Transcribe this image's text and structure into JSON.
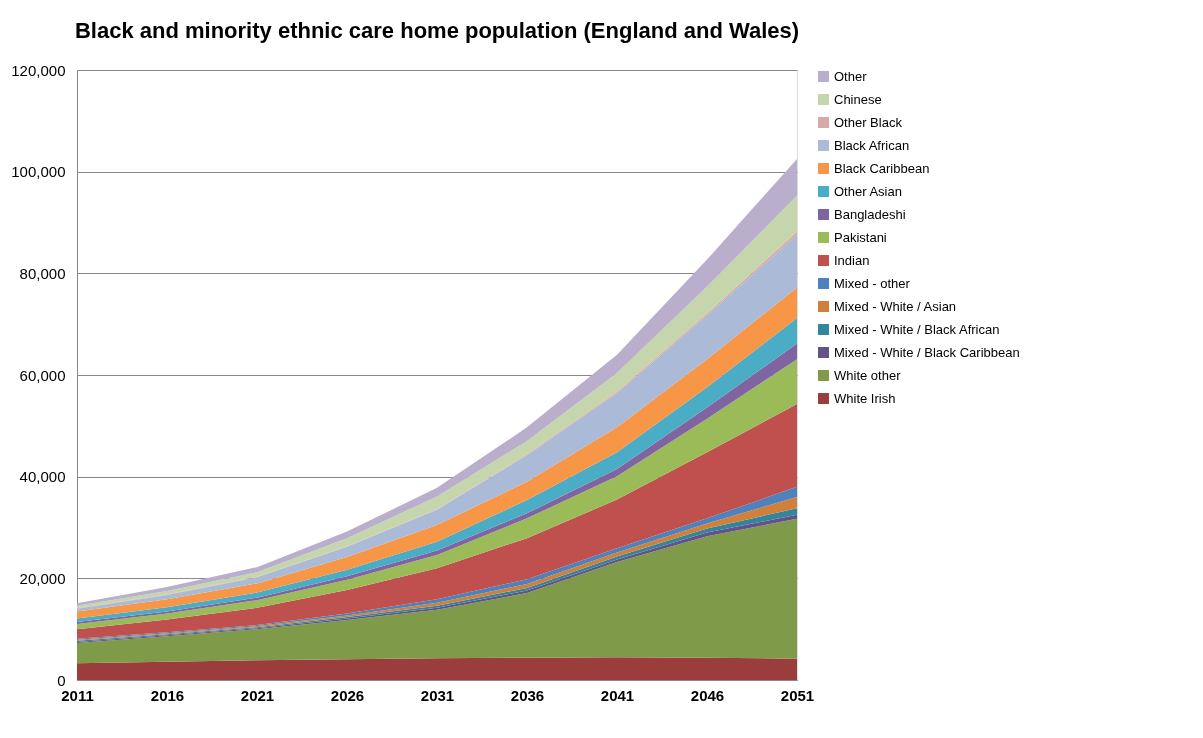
{
  "chart_data": {
    "type": "area",
    "stacked": true,
    "title": "Black and minority ethnic care home population (England and Wales)",
    "categories": [
      "2011",
      "2016",
      "2021",
      "2026",
      "2031",
      "2036",
      "2041",
      "2046",
      "2051"
    ],
    "ylim": [
      0,
      120000
    ],
    "yticks": [
      {
        "value": 0,
        "label": "0"
      },
      {
        "value": 20000,
        "label": "20,000"
      },
      {
        "value": 40000,
        "label": "40,000"
      },
      {
        "value": 60000,
        "label": "60,000"
      },
      {
        "value": 80000,
        "label": "80,000"
      },
      {
        "value": 100000,
        "label": "100,000"
      },
      {
        "value": 120000,
        "label": "120,000"
      }
    ],
    "grid": "y",
    "legend": "right",
    "series": [
      {
        "name": "White Irish",
        "color": "#9b3d3d",
        "values": [
          3300,
          3600,
          3900,
          4100,
          4300,
          4400,
          4500,
          4400,
          4200
        ]
      },
      {
        "name": "White other",
        "color": "#7f9a48",
        "values": [
          4000,
          5000,
          6100,
          7700,
          9500,
          12700,
          18700,
          23900,
          27500
        ]
      },
      {
        "name": "Mixed - White / Black Caribbean",
        "color": "#65518a",
        "values": [
          200,
          200,
          200,
          300,
          400,
          500,
          500,
          700,
          800
        ]
      },
      {
        "name": "Mixed - White / Black African",
        "color": "#31859c",
        "values": [
          200,
          200,
          200,
          300,
          400,
          500,
          600,
          800,
          1300
        ]
      },
      {
        "name": "Mixed - White / Asian",
        "color": "#d0803a",
        "values": [
          200,
          200,
          200,
          300,
          600,
          800,
          800,
          1000,
          2200
        ]
      },
      {
        "name": "Mixed - other",
        "color": "#4f81bd",
        "values": [
          200,
          200,
          200,
          400,
          700,
          900,
          800,
          1000,
          2000
        ]
      },
      {
        "name": "Indian",
        "color": "#c0504d",
        "values": [
          1900,
          2500,
          3400,
          4600,
          6100,
          8100,
          9600,
          13000,
          16300
        ]
      },
      {
        "name": "Pakistani",
        "color": "#9bbb59",
        "values": [
          1000,
          1200,
          1500,
          2000,
          2600,
          3900,
          4600,
          6600,
          8800
        ]
      },
      {
        "name": "Bangladeshi",
        "color": "#8064a2",
        "values": [
          400,
          400,
          500,
          700,
          900,
          1000,
          1400,
          2200,
          3100
        ]
      },
      {
        "name": "Other Asian",
        "color": "#4bacc6",
        "values": [
          700,
          800,
          1000,
          1300,
          1700,
          2600,
          3300,
          4000,
          5000
        ]
      },
      {
        "name": "Black Caribbean",
        "color": "#f79646",
        "values": [
          1400,
          1600,
          1800,
          2500,
          3300,
          3600,
          4900,
          5500,
          6000
        ]
      },
      {
        "name": "Black African",
        "color": "#aabad7",
        "values": [
          500,
          800,
          1200,
          2000,
          3000,
          5200,
          6700,
          8600,
          10400
        ]
      },
      {
        "name": "Other Black",
        "color": "#d9a9a8",
        "values": [
          100,
          100,
          100,
          100,
          100,
          200,
          300,
          400,
          600
        ]
      },
      {
        "name": "Chinese",
        "color": "#c6d6ac",
        "values": [
          500,
          700,
          900,
          1600,
          2500,
          2600,
          3700,
          5300,
          7100
        ]
      },
      {
        "name": "Other",
        "color": "#b9aecc",
        "values": [
          500,
          800,
          1000,
          1300,
          1700,
          2700,
          3600,
          5300,
          7200
        ]
      }
    ]
  }
}
